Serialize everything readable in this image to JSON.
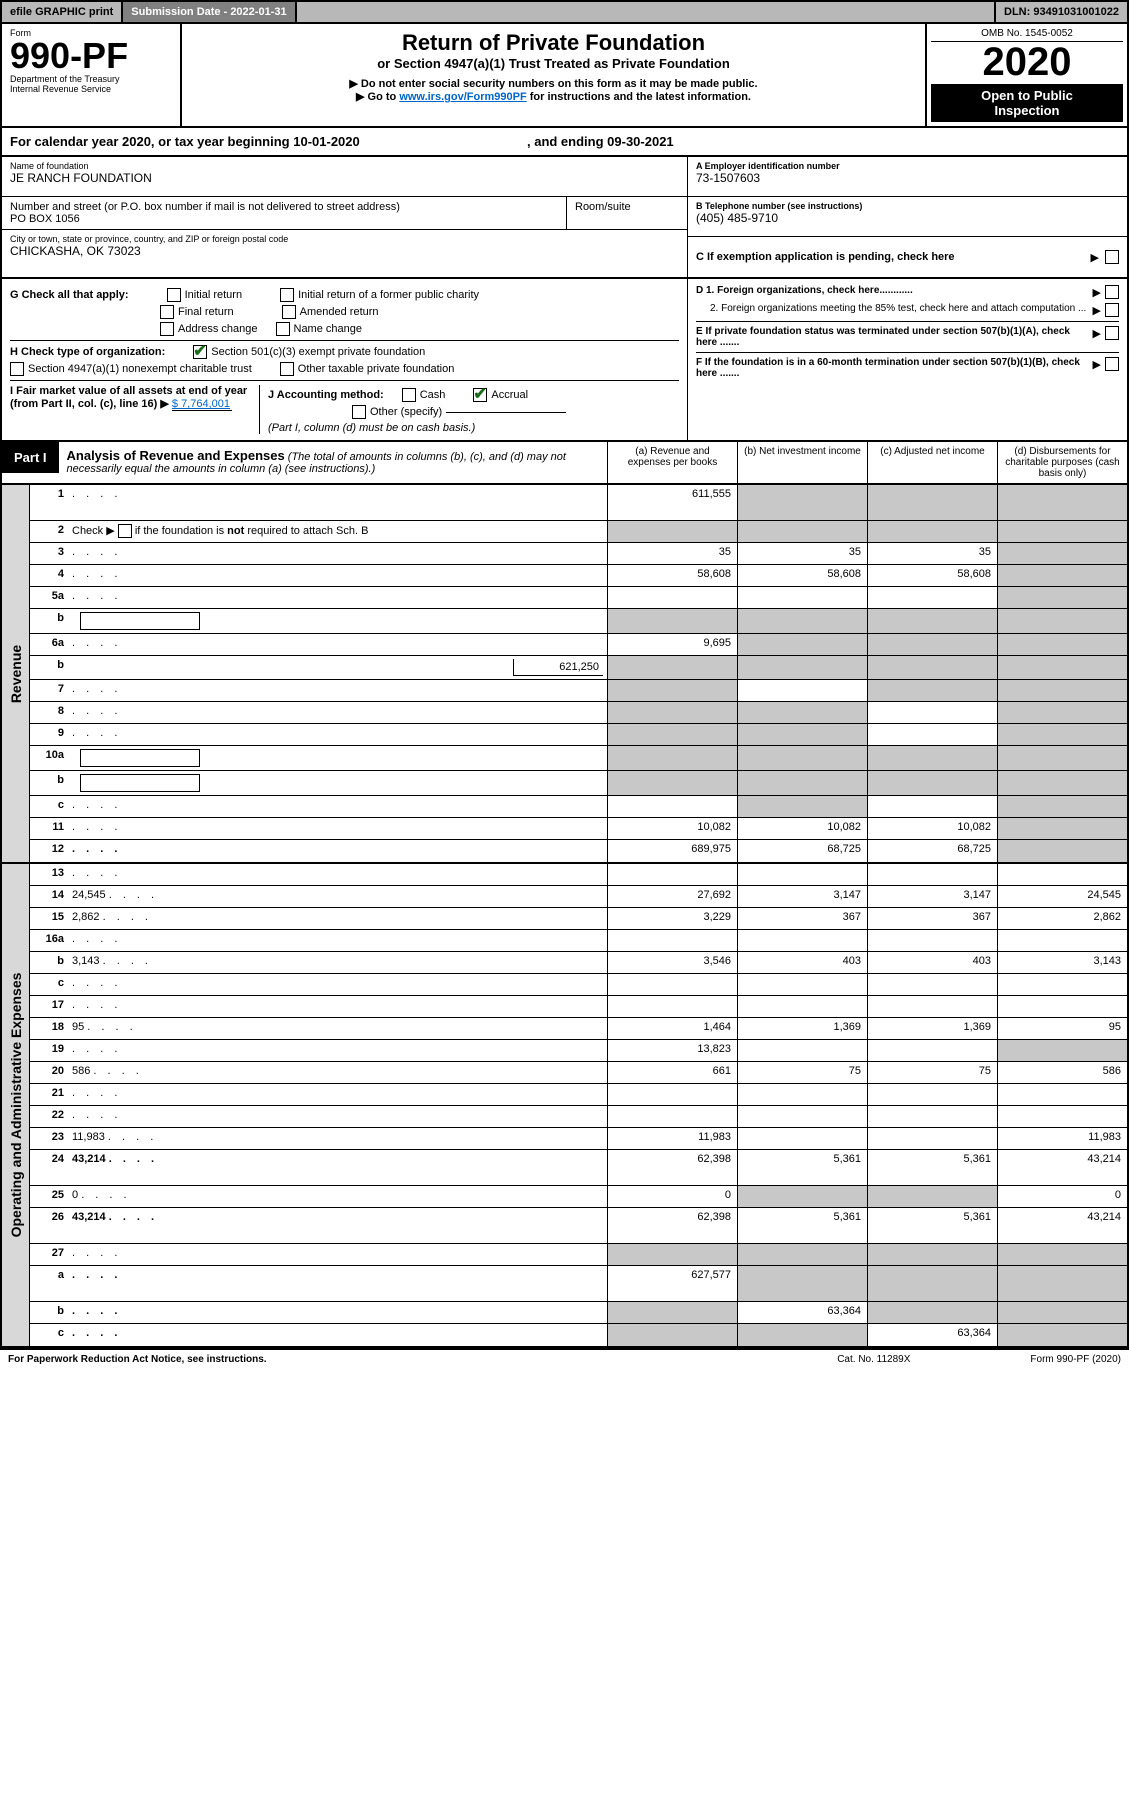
{
  "topbar": {
    "efile": "efile GRAPHIC print",
    "subdate_label": "Submission Date - 2022-01-31",
    "dln": "DLN: 93491031001022"
  },
  "header": {
    "form_word": "Form",
    "form_num": "990-PF",
    "dept": "Department of the Treasury",
    "irs": "Internal Revenue Service",
    "title": "Return of Private Foundation",
    "subtitle": "or Section 4947(a)(1) Trust Treated as Private Foundation",
    "warn1": "▶ Do not enter social security numbers on this form as it may be made public.",
    "warn2_pre": "▶ Go to ",
    "warn2_link": "www.irs.gov/Form990PF",
    "warn2_post": " for instructions and the latest information.",
    "omb": "OMB No. 1545-0052",
    "year": "2020",
    "otp1": "Open to Public",
    "otp2": "Inspection"
  },
  "calyr": {
    "pre": "For calendar year 2020, or tax year beginning ",
    "begin": "10-01-2020",
    "mid": ", and ending ",
    "end": "09-30-2021"
  },
  "id": {
    "name_lbl": "Name of foundation",
    "name": "JE RANCH FOUNDATION",
    "addr_lbl": "Number and street (or P.O. box number if mail is not delivered to street address)",
    "addr": "PO BOX 1056",
    "room_lbl": "Room/suite",
    "room": "",
    "city_lbl": "City or town, state or province, country, and ZIP or foreign postal code",
    "city": "CHICKASHA, OK  73023",
    "ein_lbl": "A Employer identification number",
    "ein": "73-1507603",
    "tel_lbl": "B Telephone number (see instructions)",
    "tel": "(405) 485-9710",
    "c_lbl": "C If exemption application is pending, check here"
  },
  "ghij": {
    "g_lbl": "G Check all that apply:",
    "g_initial": "Initial return",
    "g_initial_former": "Initial return of a former public charity",
    "g_final": "Final return",
    "g_amended": "Amended return",
    "g_addr": "Address change",
    "g_name": "Name change",
    "h_lbl": "H Check type of organization:",
    "h_501c3": "Section 501(c)(3) exempt private foundation",
    "h_4947": "Section 4947(a)(1) nonexempt charitable trust",
    "h_other": "Other taxable private foundation",
    "i_lbl_pre": "I Fair market value of all assets at end of year (from Part II, col. (c), line 16) ▶",
    "i_val": "$  7,764,001",
    "j_lbl": "J Accounting method:",
    "j_cash": "Cash",
    "j_accrual": "Accrual",
    "j_other": "Other (specify)",
    "j_note": "(Part I, column (d) must be on cash basis.)",
    "d1": "D 1. Foreign organizations, check here............",
    "d2": "2. Foreign organizations meeting the 85% test, check here and attach computation ...",
    "e": "E  If private foundation status was terminated under section 507(b)(1)(A), check here .......",
    "f": "F  If the foundation is in a 60-month termination under section 507(b)(1)(B), check here ......."
  },
  "part1": {
    "tab": "Part I",
    "title_bold": "Analysis of Revenue and Expenses",
    "title_rest": " (The total of amounts in columns (b), (c), and (d) may not necessarily equal the amounts in column (a) (see instructions).)",
    "col_a": "(a)   Revenue and expenses per books",
    "col_b": "(b)   Net investment income",
    "col_c": "(c)   Adjusted net income",
    "col_d": "(d)  Disbursements for charitable purposes (cash basis only)"
  },
  "sidelabels": {
    "revenue": "Revenue",
    "expenses": "Operating and Administrative Expenses"
  },
  "rows": {
    "r1": {
      "n": "1",
      "d": "",
      "a": "611,555",
      "b": "",
      "c": "",
      "shade_b": true,
      "shade_c": true,
      "shade_d": true,
      "tall": true
    },
    "r2": {
      "n": "2",
      "d_pre": "Check ▶ ",
      "d_post": " if the foundation is not required to attach Sch. B",
      "a": "",
      "b": "",
      "c": "",
      "d": "",
      "shade_a": true,
      "shade_b": true,
      "shade_c": true,
      "shade_d": true,
      "has_chk": true
    },
    "r3": {
      "n": "3",
      "d": "",
      "a": "35",
      "b": "35",
      "c": "35",
      "shade_d": true
    },
    "r4": {
      "n": "4",
      "d": "",
      "a": "58,608",
      "b": "58,608",
      "c": "58,608",
      "shade_d": true
    },
    "r5a": {
      "n": "5a",
      "d": "",
      "a": "",
      "b": "",
      "c": "",
      "shade_d": true
    },
    "r5b": {
      "n": "b",
      "d": "",
      "a": "",
      "b": "",
      "c": "",
      "shade_a": true,
      "shade_b": true,
      "shade_c": true,
      "shade_d": true,
      "inlinebox": true
    },
    "r6a": {
      "n": "6a",
      "d": "",
      "a": "9,695",
      "b": "",
      "c": "",
      "shade_b": true,
      "shade_c": true,
      "shade_d": true
    },
    "r6b": {
      "n": "b",
      "d": "",
      "sub": "621,250",
      "a": "",
      "b": "",
      "c": "",
      "shade_a": true,
      "shade_b": true,
      "shade_c": true,
      "shade_d": true
    },
    "r7": {
      "n": "7",
      "d": "",
      "a": "",
      "b": "",
      "c": "",
      "shade_a": true,
      "shade_c": true,
      "shade_d": true
    },
    "r8": {
      "n": "8",
      "d": "",
      "a": "",
      "b": "",
      "c": "",
      "shade_a": true,
      "shade_b": true,
      "shade_d": true
    },
    "r9": {
      "n": "9",
      "d": "",
      "a": "",
      "b": "",
      "c": "",
      "shade_a": true,
      "shade_b": true,
      "shade_d": true
    },
    "r10a": {
      "n": "10a",
      "d": "",
      "a": "",
      "b": "",
      "c": "",
      "shade_a": true,
      "shade_b": true,
      "shade_c": true,
      "shade_d": true,
      "inlinebox": true
    },
    "r10b": {
      "n": "b",
      "d": "",
      "a": "",
      "b": "",
      "c": "",
      "shade_a": true,
      "shade_b": true,
      "shade_c": true,
      "shade_d": true,
      "inlinebox": true
    },
    "r10c": {
      "n": "c",
      "d": "",
      "a": "",
      "b": "",
      "c": "",
      "shade_b": true,
      "shade_d": true
    },
    "r11": {
      "n": "11",
      "d": "",
      "a": "10,082",
      "b": "10,082",
      "c": "10,082",
      "shade_d": true
    },
    "r12": {
      "n": "12",
      "d": "",
      "a": "689,975",
      "b": "68,725",
      "c": "68,725",
      "shade_d": true,
      "bold": true
    },
    "r13": {
      "n": "13",
      "d": "",
      "a": "",
      "b": "",
      "c": ""
    },
    "r14": {
      "n": "14",
      "d": "24,545",
      "a": "27,692",
      "b": "3,147",
      "c": "3,147"
    },
    "r15": {
      "n": "15",
      "d": "2,862",
      "a": "3,229",
      "b": "367",
      "c": "367"
    },
    "r16a": {
      "n": "16a",
      "d": "",
      "a": "",
      "b": "",
      "c": ""
    },
    "r16b": {
      "n": "b",
      "d": "3,143",
      "a": "3,546",
      "b": "403",
      "c": "403"
    },
    "r16c": {
      "n": "c",
      "d": "",
      "a": "",
      "b": "",
      "c": ""
    },
    "r17": {
      "n": "17",
      "d": "",
      "a": "",
      "b": "",
      "c": ""
    },
    "r18": {
      "n": "18",
      "d": "95",
      "a": "1,464",
      "b": "1,369",
      "c": "1,369"
    },
    "r19": {
      "n": "19",
      "d": "",
      "a": "13,823",
      "b": "",
      "c": "",
      "shade_d": true
    },
    "r20": {
      "n": "20",
      "d": "586",
      "a": "661",
      "b": "75",
      "c": "75"
    },
    "r21": {
      "n": "21",
      "d": "",
      "a": "",
      "b": "",
      "c": ""
    },
    "r22": {
      "n": "22",
      "d": "",
      "a": "",
      "b": "",
      "c": ""
    },
    "r23": {
      "n": "23",
      "d": "11,983",
      "a": "11,983",
      "b": "",
      "c": ""
    },
    "r24": {
      "n": "24",
      "d": "43,214",
      "a": "62,398",
      "b": "5,361",
      "c": "5,361",
      "bold": true,
      "tall": true
    },
    "r25": {
      "n": "25",
      "d": "0",
      "a": "0",
      "b": "",
      "c": "",
      "shade_b": true,
      "shade_c": true
    },
    "r26": {
      "n": "26",
      "d": "43,214",
      "a": "62,398",
      "b": "5,361",
      "c": "5,361",
      "bold": true,
      "tall": true
    },
    "r27": {
      "n": "27",
      "d": "",
      "a": "",
      "b": "",
      "c": "",
      "shade_a": true,
      "shade_b": true,
      "shade_c": true,
      "shade_d": true
    },
    "r27a": {
      "n": "a",
      "d": "",
      "a": "627,577",
      "b": "",
      "c": "",
      "shade_b": true,
      "shade_c": true,
      "shade_d": true,
      "bold": true,
      "tall": true
    },
    "r27b": {
      "n": "b",
      "d": "",
      "a": "",
      "b": "63,364",
      "c": "",
      "shade_a": true,
      "shade_c": true,
      "shade_d": true,
      "bold": true
    },
    "r27c": {
      "n": "c",
      "d": "",
      "a": "",
      "b": "",
      "c": "63,364",
      "shade_a": true,
      "shade_b": true,
      "shade_d": true,
      "bold": true
    }
  },
  "rev_order": [
    "r1",
    "r2",
    "r3",
    "r4",
    "r5a",
    "r5b",
    "r6a",
    "r6b",
    "r7",
    "r8",
    "r9",
    "r10a",
    "r10b",
    "r10c",
    "r11",
    "r12"
  ],
  "exp_order": [
    "r13",
    "r14",
    "r15",
    "r16a",
    "r16b",
    "r16c",
    "r17",
    "r18",
    "r19",
    "r20",
    "r21",
    "r22",
    "r23",
    "r24",
    "r25",
    "r26",
    "r27",
    "r27a",
    "r27b",
    "r27c"
  ],
  "footer": {
    "left": "For Paperwork Reduction Act Notice, see instructions.",
    "mid": "Cat. No. 11289X",
    "right": "Form 990-PF (2020)"
  }
}
